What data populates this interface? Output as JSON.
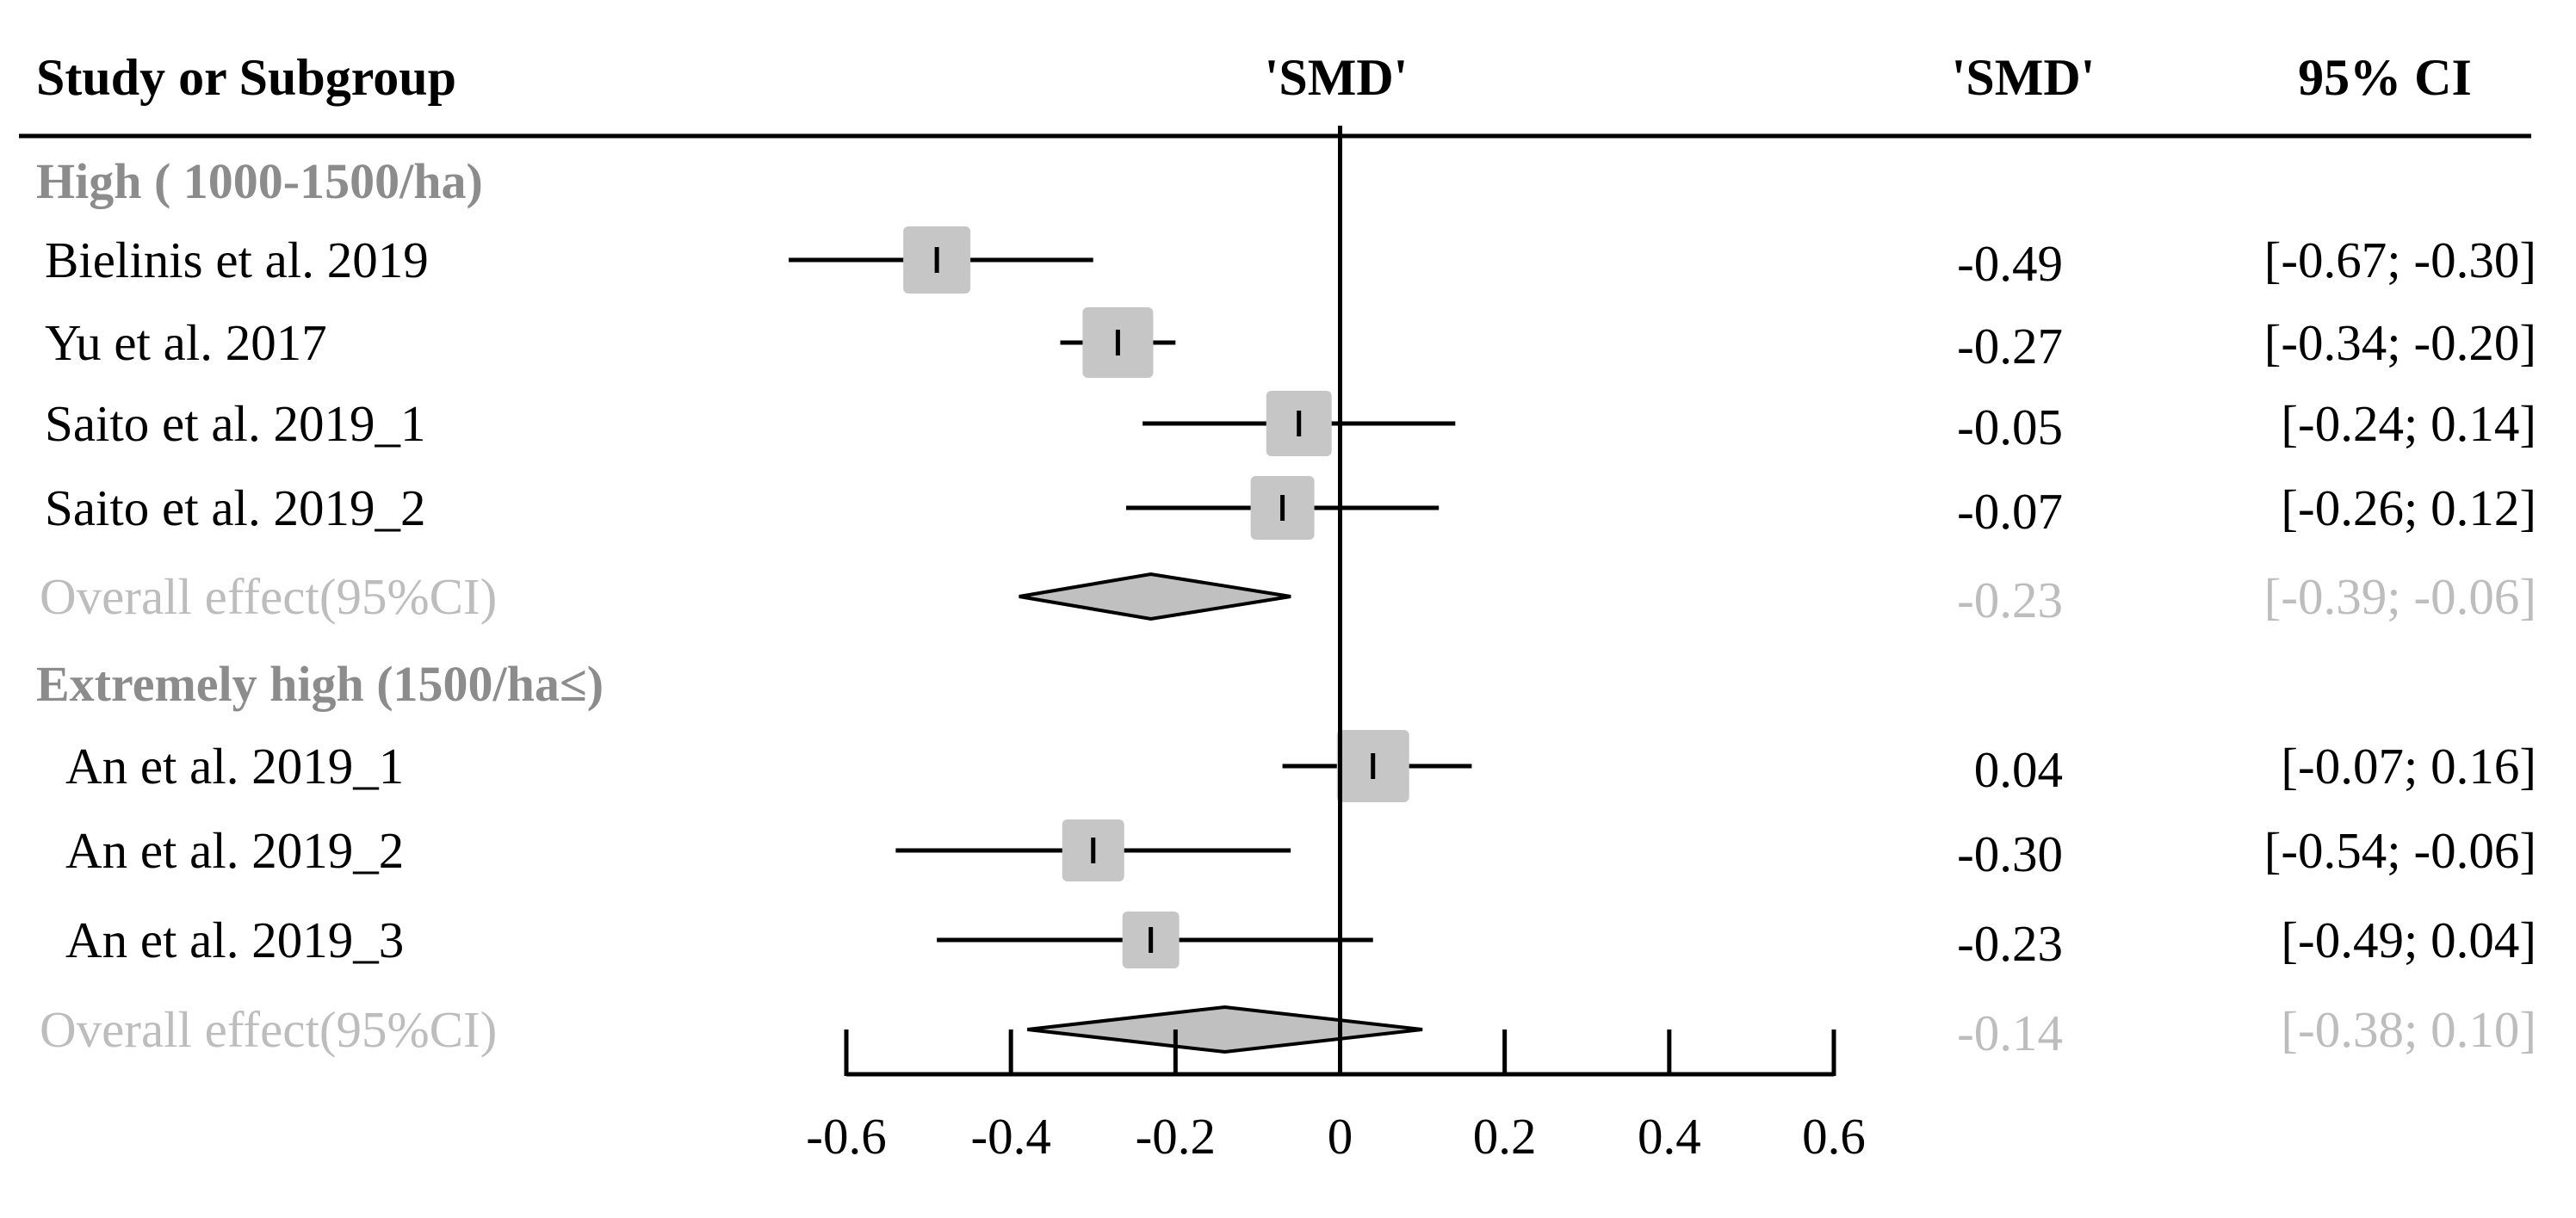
{
  "header": {
    "study_col": "Study or Subgroup",
    "plot_col": "'SMD'",
    "smd_col": "'SMD'",
    "ci_col": "95% CI"
  },
  "groups": [
    {
      "label": "High ( 1000-1500/ha)",
      "studies": [
        {
          "name": "Bielinis et al. 2019",
          "smd_text": "-0.49",
          "ci_text": "[-0.67; -0.30]"
        },
        {
          "name": "Yu  et al. 2017",
          "smd_text": "-0.27",
          "ci_text": "[-0.34; -0.20]"
        },
        {
          "name": "Saito et al. 2019_1",
          "smd_text": "-0.05",
          "ci_text": "[-0.24;  0.14]"
        },
        {
          "name": "Saito et al. 2019_2",
          "smd_text": "-0.07",
          "ci_text": "[-0.26;  0.12]"
        }
      ],
      "overall": {
        "name": "Overall effect(95%CI)",
        "smd_text": "-0.23",
        "ci_text": "[-0.39; -0.06]"
      }
    },
    {
      "label": "Extremely high (1500/ha≤)",
      "studies": [
        {
          "name": "An et al. 2019_1",
          "smd_text": "0.04",
          "ci_text": "[-0.07;  0.16]"
        },
        {
          "name": "An et al. 2019_2",
          "smd_text": "-0.30",
          "ci_text": "[-0.54; -0.06]"
        },
        {
          "name": "An et al. 2019_3",
          "smd_text": "-0.23",
          "ci_text": "[-0.49;  0.04]"
        }
      ],
      "overall": {
        "name": "Overall effect(95%CI)",
        "smd_text": "-0.14",
        "ci_text": "[-0.38;  0.10]"
      }
    }
  ],
  "colors": {
    "text": "#000000",
    "group_label": "#8c8c8c",
    "overall_text": "#bdbdbd",
    "box_fill": "#c6c6c6",
    "diamond_fill": "#c0c0c0"
  },
  "chart_data": {
    "type": "forest",
    "xlim": [
      -0.6,
      0.6
    ],
    "xticks": [
      "-0.6",
      "-0.4",
      "-0.2",
      "0",
      "0.2",
      "0.4",
      "0.6"
    ],
    "reference_line": 0,
    "groups": [
      {
        "label": "High ( 1000-1500/ha)",
        "studies": [
          {
            "name": "Bielinis et al. 2019",
            "smd": -0.49,
            "lower": -0.67,
            "upper": -0.3
          },
          {
            "name": "Yu  et al. 2017",
            "smd": -0.27,
            "lower": -0.34,
            "upper": -0.2
          },
          {
            "name": "Saito et al. 2019_1",
            "smd": -0.05,
            "lower": -0.24,
            "upper": 0.14
          },
          {
            "name": "Saito et al. 2019_2",
            "smd": -0.07,
            "lower": -0.26,
            "upper": 0.12
          }
        ],
        "overall": {
          "smd": -0.23,
          "lower": -0.39,
          "upper": -0.06
        }
      },
      {
        "label": "Extremely high (1500/ha≤)",
        "studies": [
          {
            "name": "An et al. 2019_1",
            "smd": 0.04,
            "lower": -0.07,
            "upper": 0.16
          },
          {
            "name": "An et al. 2019_2",
            "smd": -0.3,
            "lower": -0.54,
            "upper": -0.06
          },
          {
            "name": "An et al. 2019_3",
            "smd": -0.23,
            "lower": -0.49,
            "upper": 0.04
          }
        ],
        "overall": {
          "smd": -0.14,
          "lower": -0.38,
          "upper": 0.1
        }
      }
    ]
  }
}
